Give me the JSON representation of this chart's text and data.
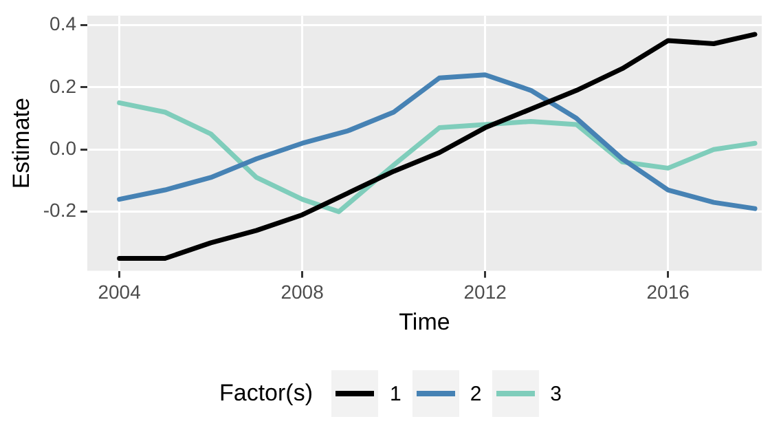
{
  "chart_data": {
    "type": "line",
    "xlabel": "Time",
    "ylabel": "Estimate",
    "legend_title": "Factor(s)",
    "legend": "bottom",
    "grid": true,
    "marker": "none",
    "line_style": "solid",
    "xlim": [
      2003.3,
      2018.05
    ],
    "xticks": [
      2004,
      2008,
      2012,
      2016
    ],
    "ylim": [
      -0.39,
      0.43
    ],
    "yticks": [
      {
        "value": -0.2,
        "label": "-0.2"
      },
      {
        "value": 0,
        "label": "0.0"
      },
      {
        "value": 0.2,
        "label": "0.2"
      },
      {
        "value": 0.4,
        "label": "0.4"
      }
    ],
    "series": [
      {
        "name": "1",
        "color": "#000000",
        "x": [
          2004,
          2005,
          2006,
          2007,
          2008,
          2009,
          2010,
          2011,
          2012,
          2013,
          2014,
          2015,
          2016,
          2017,
          2017.9
        ],
        "values": [
          -0.35,
          -0.35,
          -0.3,
          -0.26,
          -0.21,
          -0.14,
          -0.07,
          -0.01,
          0.07,
          0.13,
          0.19,
          0.26,
          0.35,
          0.34,
          0.37
        ]
      },
      {
        "name": "2",
        "color": "#4682b4",
        "x": [
          2004,
          2005,
          2006,
          2007,
          2008,
          2009,
          2010,
          2011,
          2012,
          2013,
          2014,
          2015,
          2016,
          2017,
          2017.9
        ],
        "values": [
          -0.16,
          -0.13,
          -0.09,
          -0.03,
          0.02,
          0.06,
          0.12,
          0.23,
          0.24,
          0.19,
          0.1,
          -0.03,
          -0.13,
          -0.17,
          -0.19
        ]
      },
      {
        "name": "3",
        "color": "#7fcdbb",
        "x": [
          2004,
          2005,
          2006,
          2007,
          2008,
          2008.8,
          2010,
          2011,
          2012,
          2013,
          2014,
          2015,
          2016,
          2017,
          2017.9
        ],
        "values": [
          0.15,
          0.12,
          0.05,
          -0.09,
          -0.16,
          -0.2,
          -0.05,
          0.07,
          0.08,
          0.09,
          0.08,
          -0.04,
          -0.06,
          0,
          0.02
        ]
      }
    ]
  }
}
